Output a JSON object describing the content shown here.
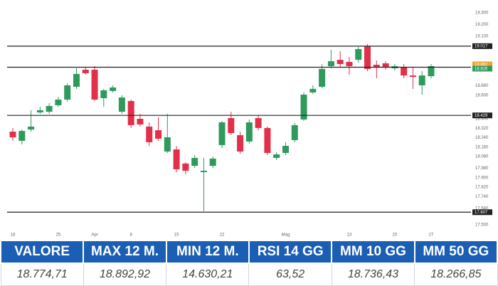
{
  "chart_data": {
    "type": "candlestick",
    "categories": [
      "18",
      null,
      null,
      null,
      null,
      "25",
      null,
      null,
      null,
      "Apr",
      null,
      null,
      null,
      "8",
      null,
      null,
      null,
      null,
      "15",
      null,
      null,
      null,
      null,
      "22",
      null,
      null,
      null,
      null,
      null,
      null,
      "Mag",
      null,
      null,
      null,
      null,
      null,
      null,
      "13",
      null,
      null,
      null,
      null,
      "20",
      null,
      null,
      null,
      "27"
    ],
    "open": [
      18291,
      18213,
      18309,
      18454,
      18460,
      18515,
      18563,
      18672,
      18817,
      18817,
      18575,
      18636,
      18460,
      18551,
      18400,
      18334,
      18303,
      18122,
      18140,
      18020,
      18001,
      17947,
      18001,
      18177,
      18406,
      18261,
      18207,
      18406,
      18322,
      18068,
      18110,
      18219,
      18394,
      18624,
      18672,
      18847,
      18901,
      18883,
      18901,
      19016,
      18859,
      18871,
      18829,
      18841,
      18768,
      18684,
      18762
    ],
    "high": [
      18322,
      18309,
      18473,
      18503,
      18533,
      18587,
      18702,
      18829,
      18835,
      18847,
      18654,
      18684,
      18599,
      18563,
      18442,
      18370,
      18412,
      18442,
      18170,
      18032,
      18092,
      18068,
      18080,
      18382,
      18460,
      18291,
      18394,
      18430,
      18334,
      18116,
      18201,
      18364,
      18624,
      18684,
      18865,
      18986,
      18974,
      18926,
      19010,
      19034,
      18895,
      18889,
      18865,
      18865,
      18835,
      18805,
      18865
    ],
    "low": [
      18213,
      18183,
      18291,
      18442,
      18442,
      18503,
      18545,
      18654,
      18775,
      18551,
      18503,
      18624,
      18442,
      18322,
      18334,
      18170,
      18213,
      18110,
      17947,
      17929,
      17983,
      17615,
      17983,
      18152,
      18261,
      18104,
      18189,
      18303,
      18092,
      18050,
      18092,
      18201,
      18382,
      18611,
      18660,
      18829,
      18835,
      18775,
      18877,
      18805,
      18744,
      18817,
      18811,
      18744,
      18654,
      18605,
      18744
    ],
    "close": [
      18243,
      18297,
      18334,
      18473,
      18509,
      18563,
      18684,
      18781,
      18787,
      18563,
      18642,
      18666,
      18581,
      18346,
      18352,
      18201,
      18231,
      18243,
      17971,
      17959,
      18068,
      17959,
      18062,
      18370,
      18279,
      18122,
      18370,
      18322,
      18110,
      18098,
      18170,
      18346,
      18605,
      18654,
      18823,
      18889,
      18865,
      18847,
      18992,
      18823,
      18835,
      18841,
      18847,
      18768,
      18756,
      18768,
      18847
    ],
    "up_color": "#2e9a5c",
    "down_color": "#e2304a",
    "ylim": [
      17500,
      19300
    ],
    "yticks": [
      {
        "value": 19300,
        "label": "19.300"
      },
      {
        "value": 19200,
        "label": "19.200"
      },
      {
        "value": 19100,
        "label": "19.100"
      },
      {
        "value": 18680,
        "label": "18.680"
      },
      {
        "value": 18600,
        "label": "18.600"
      },
      {
        "value": 18400,
        "label": "18.400"
      },
      {
        "value": 18320,
        "label": "18.320"
      },
      {
        "value": 18240,
        "label": "18.240"
      },
      {
        "value": 18160,
        "label": "18.160"
      },
      {
        "value": 18080,
        "label": "18.080"
      },
      {
        "value": 17980,
        "label": "17.980"
      },
      {
        "value": 17900,
        "label": "17.900"
      },
      {
        "value": 17820,
        "label": "17.820"
      },
      {
        "value": 17740,
        "label": "17.740"
      },
      {
        "value": 17640,
        "label": "17.640"
      },
      {
        "value": 17500,
        "label": "17.500"
      }
    ],
    "levels": [
      {
        "value": 19017,
        "label": "19.017"
      },
      {
        "value": 18838,
        "label": "18.838"
      },
      {
        "value": 18429,
        "label": "18.429"
      },
      {
        "value": 17607,
        "label": "17.607"
      }
    ],
    "level_color": "#222222",
    "price_tags": [
      {
        "value": 18862,
        "label": "18.862",
        "color": "#f0a030"
      },
      {
        "value": 18826,
        "label": "18.826",
        "color": "#2e9a5c"
      }
    ]
  },
  "table": {
    "headers": [
      "VALORE",
      "MAX 12 M.",
      "MIN 12 M.",
      "RSI 14 GG",
      "MM 10 GG",
      "MM 50 GG"
    ],
    "rows": [
      [
        "18.774,71",
        "18.892,92",
        "14.630,21",
        "63,52",
        "18.736,43",
        "18.266,85"
      ]
    ]
  }
}
